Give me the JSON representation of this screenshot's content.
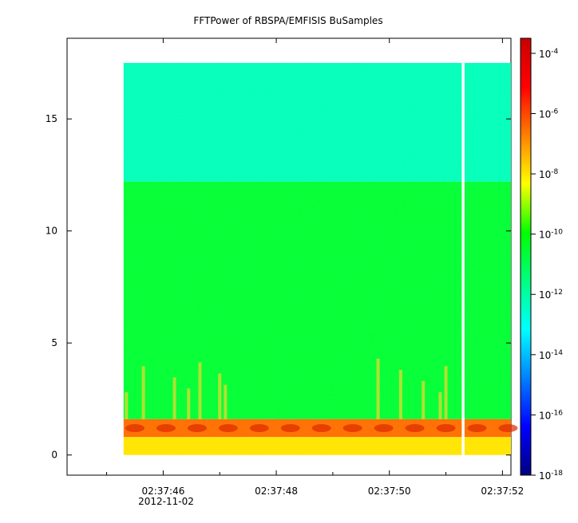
{
  "chart_data": {
    "type": "heatmap",
    "title": "FFTPower of RBSPA/EMFISIS  BuSamples",
    "xlabel": "",
    "ylabel": "",
    "x_date": "2012-11-02",
    "x_ticks": [
      {
        "value": 46,
        "label": "02:37:46"
      },
      {
        "value": 48,
        "label": "02:37:48"
      },
      {
        "value": 50,
        "label": "02:37:50"
      },
      {
        "value": 52,
        "label": "02:37:52"
      }
    ],
    "x_minor_ticks": [
      45,
      47,
      49,
      51
    ],
    "xlim": [
      44.3,
      52.15
    ],
    "data_time_range": [
      45.3,
      52.15
    ],
    "data_gap": {
      "start": 51.28,
      "end": 51.33
    },
    "yticks": [
      0,
      5,
      10,
      15
    ],
    "ylim": [
      -0.9,
      18.6
    ],
    "data_y_range": [
      0,
      17.5
    ],
    "colorbar": {
      "scale": "log",
      "min_exponent": -18,
      "max_exponent": -3.5,
      "tick_exponents": [
        -18,
        -16,
        -14,
        -12,
        -10,
        -8,
        -6,
        -4
      ],
      "colors": [
        "#000080",
        "#0000ff",
        "#0080ff",
        "#00ffff",
        "#00ff80",
        "#00ff00",
        "#ffff00",
        "#ff8000",
        "#ff0000",
        "#c80000"
      ]
    },
    "bands": [
      {
        "ylim": [
          12.2,
          17.5
        ],
        "log_power": -12.3,
        "note_color": "#1ee88a"
      },
      {
        "ylim": [
          1.6,
          12.2
        ],
        "log_power": -10.6,
        "note_color": "#33e633"
      },
      {
        "ylim": [
          0.8,
          1.6
        ],
        "log_power": -6.5,
        "note_color": "#ff5000"
      },
      {
        "ylim": [
          0.0,
          0.8
        ],
        "log_power": -8.0,
        "note_color": "#ddee22"
      }
    ],
    "grid": false
  }
}
